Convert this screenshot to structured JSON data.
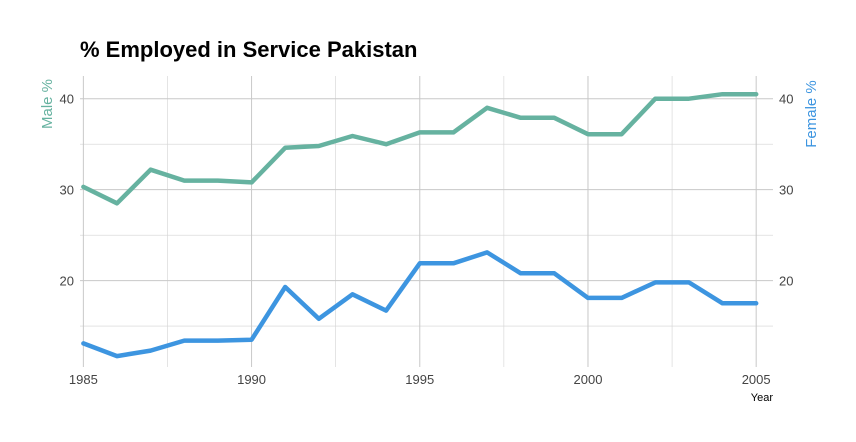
{
  "chart_data": {
    "type": "line",
    "title": "% Employed in Service Pakistan",
    "xlabel": "Year",
    "ylabel_left": "Male %",
    "ylabel_right": "Female %",
    "xlim": [
      1984.9,
      2005.5
    ],
    "ylim": [
      10.5,
      42.5
    ],
    "x_ticks": [
      1985,
      1990,
      1995,
      2000,
      2005
    ],
    "x_minor_ticks": [
      1987.5,
      1992.5,
      1997.5,
      2002.5
    ],
    "y_ticks": [
      20,
      30,
      40
    ],
    "y_minor_ticks": [
      15,
      25,
      35
    ],
    "grid": true,
    "series": [
      {
        "name": "Male %",
        "color": "#66b2a0",
        "x": [
          1985,
          1986,
          1987,
          1988,
          1989,
          1990,
          1991,
          1992,
          1993,
          1994,
          1995,
          1996,
          1997,
          1998,
          1999,
          2000,
          2001,
          2002,
          2003,
          2004,
          2005
        ],
        "values": [
          30.3,
          28.5,
          32.2,
          31.0,
          31.0,
          30.8,
          34.6,
          34.8,
          35.9,
          35.0,
          36.3,
          36.3,
          39.0,
          37.9,
          37.9,
          36.1,
          36.1,
          40.0,
          40.0,
          40.5,
          40.5
        ]
      },
      {
        "name": "Female %",
        "color": "#3d95e0",
        "x": [
          1985,
          1986,
          1987,
          1988,
          1989,
          1990,
          1991,
          1992,
          1993,
          1994,
          1995,
          1996,
          1997,
          1998,
          1999,
          2000,
          2001,
          2002,
          2003,
          2004,
          2005
        ],
        "values": [
          13.1,
          11.7,
          12.3,
          13.4,
          13.4,
          13.5,
          19.3,
          15.8,
          18.5,
          16.7,
          21.9,
          21.9,
          23.1,
          20.8,
          20.8,
          18.1,
          18.1,
          19.8,
          19.8,
          17.5,
          17.5
        ]
      }
    ]
  }
}
